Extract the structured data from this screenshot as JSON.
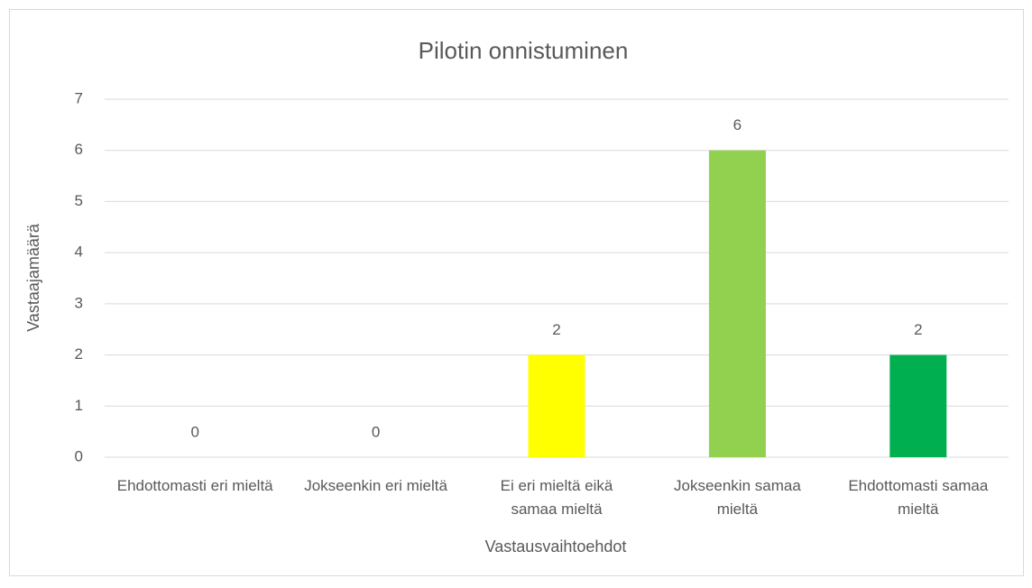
{
  "chart_data": {
    "type": "bar",
    "title": "Pilotin onnistuminen",
    "x_label": "Vastausvaihtoehdot",
    "y_label": "Vastaajamäärä",
    "categories": [
      "Ehdottomasti eri mieltä",
      "Jokseenkin eri mieltä",
      "Ei eri mieltä eikä samaa mieltä",
      "Jokseenkin samaa mieltä",
      "Ehdottomasti samaa mieltä"
    ],
    "values": [
      0,
      0,
      2,
      6,
      2
    ],
    "colors": [
      null,
      null,
      "#ffff00",
      "#92d050",
      "#00b050"
    ],
    "ylim": [
      0,
      7
    ],
    "yticks": [
      0,
      1,
      2,
      3,
      4,
      5,
      6,
      7
    ],
    "grid": true
  }
}
